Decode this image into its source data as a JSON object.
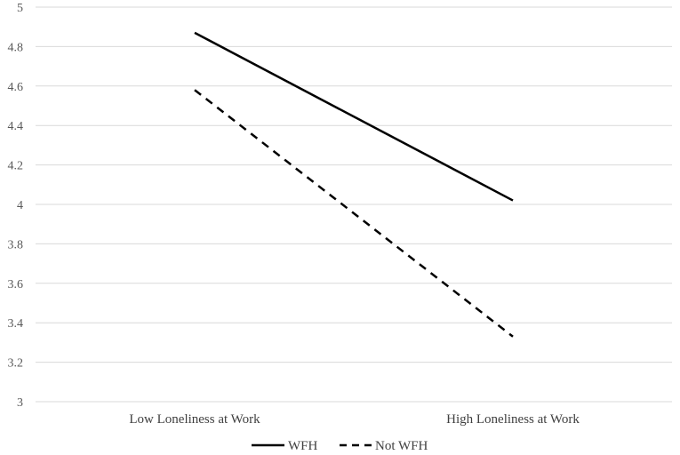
{
  "chart_data": {
    "type": "line",
    "categories": [
      "Low Loneliness at Work",
      "High Loneliness at Work"
    ],
    "series": [
      {
        "name": "WFH",
        "values": [
          4.87,
          4.02
        ],
        "line_style": "solid",
        "color": "#000000"
      },
      {
        "name": "Not WFH",
        "values": [
          4.58,
          3.33
        ],
        "line_style": "dashed",
        "color": "#000000"
      }
    ],
    "title": "",
    "xlabel": "",
    "ylabel": "",
    "ylim": [
      3,
      5
    ],
    "yticks": [
      "3",
      "3.2",
      "3.4",
      "3.6",
      "3.8",
      "4",
      "4.2",
      "4.4",
      "4.6",
      "4.8",
      "5"
    ],
    "grid": true,
    "legend_position": "bottom"
  }
}
